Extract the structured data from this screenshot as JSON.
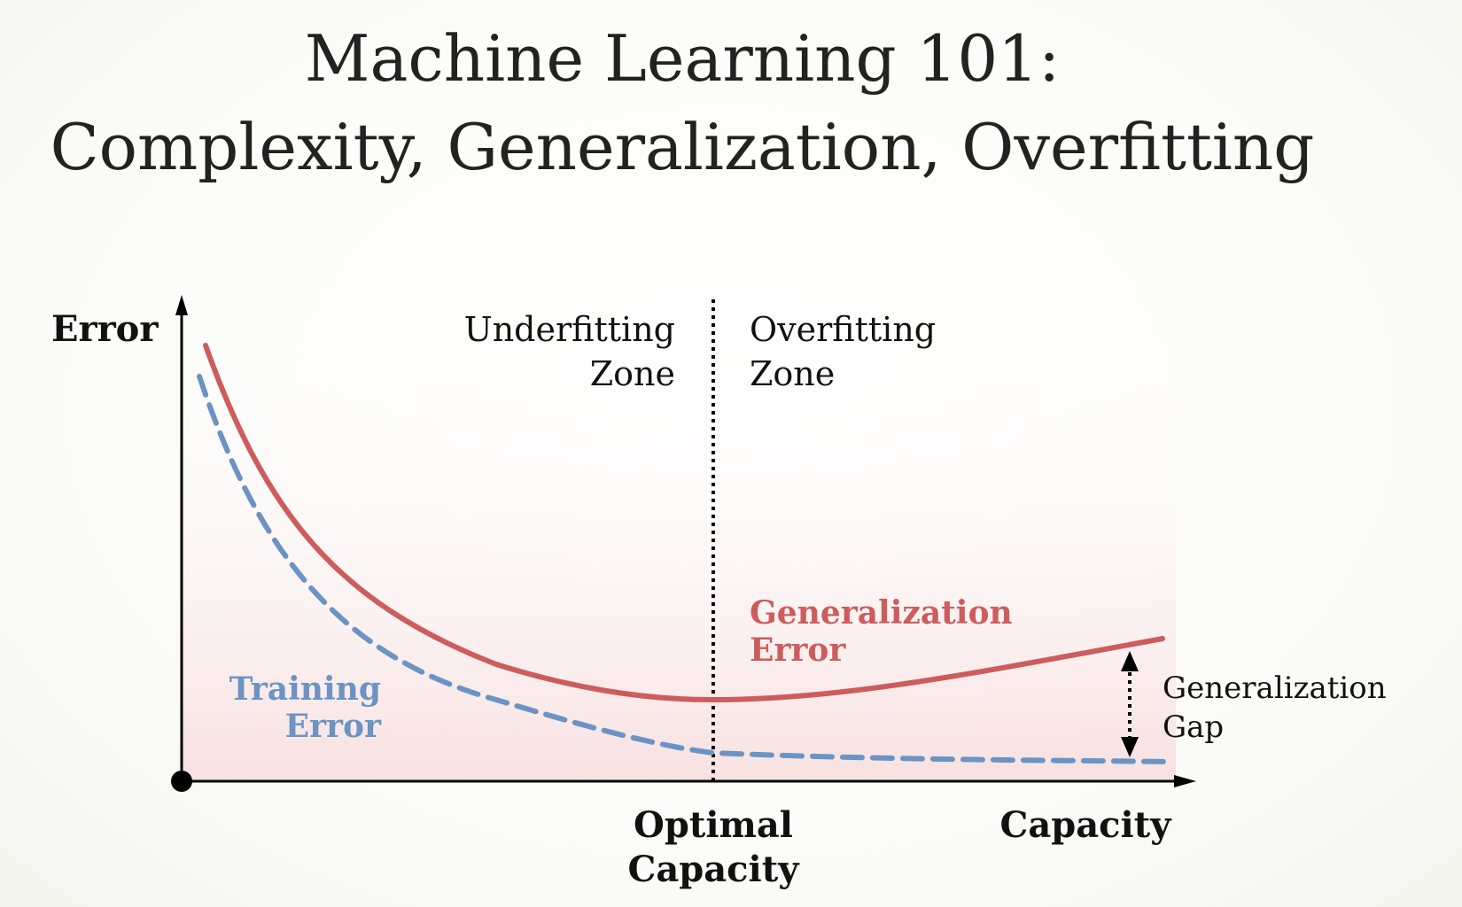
{
  "title": {
    "line1": "Machine Learning 101:",
    "line2": "Complexity, Generalization, Overfitting"
  },
  "axes": {
    "y_label": "Error",
    "x_label": "Capacity"
  },
  "zones": {
    "underfitting": [
      "Underfitting",
      "Zone"
    ],
    "overfitting": [
      "Overfitting",
      "Zone"
    ]
  },
  "optimal_label": [
    "Optimal",
    "Capacity"
  ],
  "curves": {
    "generalization_label": [
      "Generalization",
      "Error"
    ],
    "training_label": [
      "Training",
      "Error"
    ]
  },
  "gap_label": [
    "Generalization",
    "Gap"
  ],
  "colors": {
    "generalization": "#cd5c5c",
    "training": "#6b93c4",
    "axis": "#000000",
    "area": "#f7dede"
  }
}
